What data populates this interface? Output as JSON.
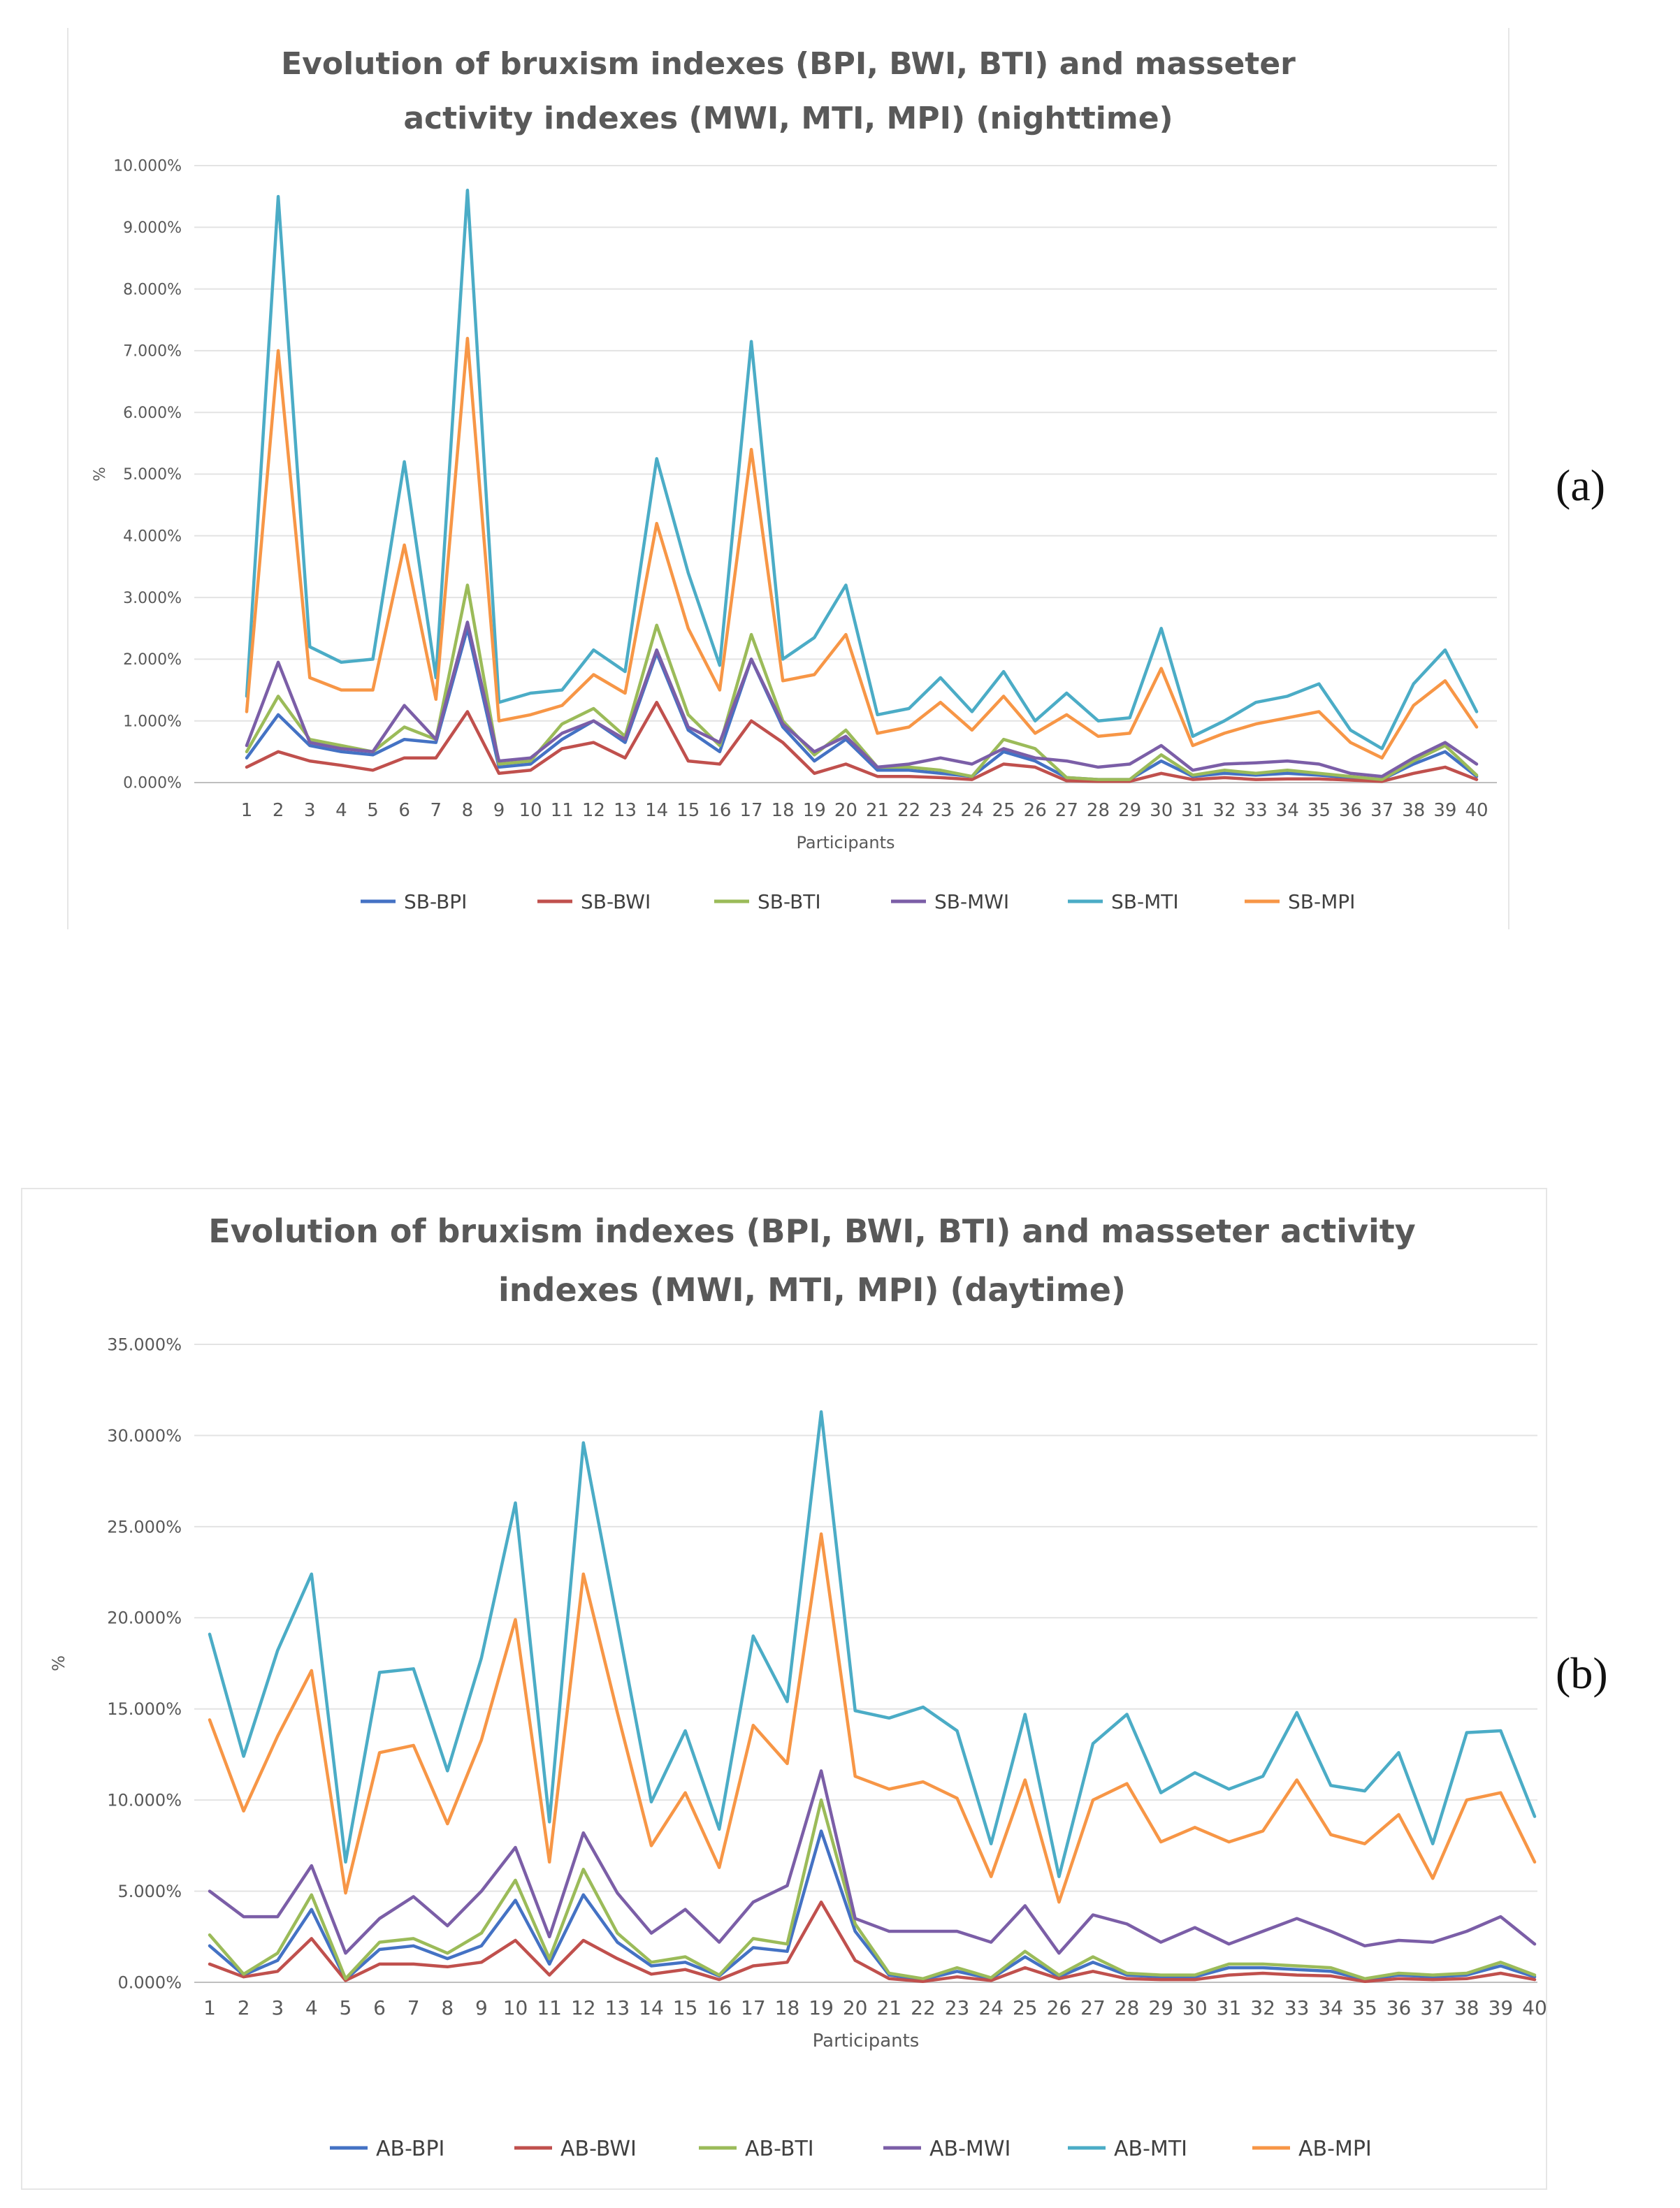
{
  "panel_labels": {
    "a": "(a)",
    "b": "(b)"
  },
  "chart_data": [
    {
      "type": "line",
      "title_lines": [
        "Evolution of bruxism indexes (BPI, BWI, BTI) and masseter",
        "activity indexes (MWI, MTI, MPI) (nighttime)"
      ],
      "xlabel": "Participants",
      "ylabel": "%",
      "ylim": [
        0,
        10
      ],
      "y_ticks": [
        0,
        1,
        2,
        3,
        4,
        5,
        6,
        7,
        8,
        9,
        10
      ],
      "y_tick_labels": [
        "0.000%",
        "1.000%",
        "2.000%",
        "3.000%",
        "4.000%",
        "5.000%",
        "6.000%",
        "7.000%",
        "8.000%",
        "9.000%",
        "10.000%"
      ],
      "categories": [
        "1",
        "2",
        "3",
        "4",
        "5",
        "6",
        "7",
        "8",
        "9",
        "10",
        "11",
        "12",
        "13",
        "14",
        "15",
        "16",
        "17",
        "18",
        "19",
        "20",
        "21",
        "22",
        "23",
        "24",
        "25",
        "26",
        "27",
        "28",
        "29",
        "30",
        "31",
        "32",
        "33",
        "34",
        "35",
        "36",
        "37",
        "38",
        "39",
        "40"
      ],
      "grid": true,
      "legend_position": "bottom",
      "series": [
        {
          "name": "SB-BPI",
          "color": "#4472c4",
          "values": [
            0.4,
            1.1,
            0.6,
            0.5,
            0.45,
            0.7,
            0.65,
            2.5,
            0.25,
            0.3,
            0.7,
            1.0,
            0.65,
            2.1,
            0.85,
            0.5,
            2.0,
            0.9,
            0.35,
            0.7,
            0.2,
            0.2,
            0.15,
            0.1,
            0.5,
            0.35,
            0.08,
            0.05,
            0.05,
            0.35,
            0.1,
            0.15,
            0.12,
            0.15,
            0.12,
            0.08,
            0.05,
            0.3,
            0.5,
            0.1
          ]
        },
        {
          "name": "SB-BWI",
          "color": "#c0504d",
          "values": [
            0.25,
            0.5,
            0.35,
            0.28,
            0.2,
            0.4,
            0.4,
            1.15,
            0.15,
            0.2,
            0.55,
            0.65,
            0.4,
            1.3,
            0.35,
            0.3,
            1.0,
            0.65,
            0.15,
            0.3,
            0.1,
            0.1,
            0.08,
            0.05,
            0.3,
            0.25,
            0.03,
            0.02,
            0.02,
            0.15,
            0.05,
            0.08,
            0.05,
            0.06,
            0.06,
            0.04,
            0.02,
            0.15,
            0.25,
            0.05
          ]
        },
        {
          "name": "SB-BTI",
          "color": "#9bbb59",
          "values": [
            0.5,
            1.4,
            0.7,
            0.6,
            0.5,
            0.9,
            0.7,
            3.2,
            0.3,
            0.35,
            0.95,
            1.2,
            0.75,
            2.55,
            1.1,
            0.6,
            2.4,
            1.0,
            0.45,
            0.85,
            0.25,
            0.25,
            0.2,
            0.1,
            0.7,
            0.55,
            0.08,
            0.05,
            0.05,
            0.45,
            0.12,
            0.2,
            0.15,
            0.2,
            0.15,
            0.1,
            0.05,
            0.35,
            0.6,
            0.12
          ]
        },
        {
          "name": "SB-MWI",
          "color": "#7b5ea7",
          "values": [
            0.6,
            1.95,
            0.65,
            0.55,
            0.5,
            1.25,
            0.7,
            2.6,
            0.35,
            0.4,
            0.8,
            1.0,
            0.7,
            2.15,
            0.9,
            0.65,
            2.0,
            0.95,
            0.5,
            0.75,
            0.25,
            0.3,
            0.4,
            0.3,
            0.55,
            0.4,
            0.35,
            0.25,
            0.3,
            0.6,
            0.2,
            0.3,
            0.32,
            0.35,
            0.3,
            0.15,
            0.1,
            0.4,
            0.65,
            0.3
          ]
        },
        {
          "name": "SB-MTI",
          "color": "#4bacc6",
          "values": [
            1.4,
            9.5,
            2.2,
            1.95,
            2.0,
            5.2,
            1.7,
            9.6,
            1.3,
            1.45,
            1.5,
            2.15,
            1.8,
            5.25,
            3.4,
            1.9,
            7.15,
            2.0,
            2.35,
            3.2,
            1.1,
            1.2,
            1.7,
            1.15,
            1.8,
            1.0,
            1.45,
            1.0,
            1.05,
            2.5,
            0.75,
            1.0,
            1.3,
            1.4,
            1.6,
            0.85,
            0.55,
            1.6,
            2.15,
            1.15
          ]
        },
        {
          "name": "SB-MPI",
          "color": "#f79646",
          "values": [
            1.15,
            7.0,
            1.7,
            1.5,
            1.5,
            3.85,
            1.35,
            7.2,
            1.0,
            1.1,
            1.25,
            1.75,
            1.45,
            4.2,
            2.5,
            1.5,
            5.4,
            1.65,
            1.75,
            2.4,
            0.8,
            0.9,
            1.3,
            0.85,
            1.4,
            0.8,
            1.1,
            0.75,
            0.8,
            1.85,
            0.6,
            0.8,
            0.95,
            1.05,
            1.15,
            0.65,
            0.4,
            1.25,
            1.65,
            0.9
          ]
        }
      ]
    },
    {
      "type": "line",
      "title_lines": [
        "Evolution of bruxism indexes (BPI, BWI, BTI) and masseter activity",
        "indexes (MWI, MTI, MPI) (daytime)"
      ],
      "xlabel": "Participants",
      "ylabel": "%",
      "ylim": [
        0,
        35
      ],
      "y_ticks": [
        0,
        5,
        10,
        15,
        20,
        25,
        30,
        35
      ],
      "y_tick_labels": [
        "0.000%",
        "5.000%",
        "10.000%",
        "15.000%",
        "20.000%",
        "25.000%",
        "30.000%",
        "35.000%"
      ],
      "categories": [
        "1",
        "2",
        "3",
        "4",
        "5",
        "6",
        "7",
        "8",
        "9",
        "10",
        "11",
        "12",
        "13",
        "14",
        "15",
        "16",
        "17",
        "18",
        "19",
        "20",
        "21",
        "22",
        "23",
        "24",
        "25",
        "26",
        "27",
        "28",
        "29",
        "30",
        "31",
        "32",
        "33",
        "34",
        "35",
        "36",
        "37",
        "38",
        "39",
        "40"
      ],
      "grid": true,
      "legend_position": "bottom",
      "series": [
        {
          "name": "AB-BPI",
          "color": "#4472c4",
          "values": [
            2.0,
            0.4,
            1.2,
            4.0,
            0.15,
            1.8,
            2.0,
            1.3,
            2.0,
            4.5,
            1.0,
            4.8,
            2.2,
            0.9,
            1.1,
            0.35,
            1.9,
            1.7,
            8.3,
            2.8,
            0.4,
            0.15,
            0.6,
            0.2,
            1.4,
            0.3,
            1.1,
            0.4,
            0.3,
            0.3,
            0.8,
            0.8,
            0.7,
            0.6,
            0.15,
            0.4,
            0.3,
            0.4,
            0.9,
            0.3
          ]
        },
        {
          "name": "AB-BWI",
          "color": "#c0504d",
          "values": [
            1.0,
            0.3,
            0.6,
            2.4,
            0.1,
            1.0,
            1.0,
            0.85,
            1.1,
            2.3,
            0.4,
            2.3,
            1.3,
            0.45,
            0.7,
            0.15,
            0.9,
            1.1,
            4.4,
            1.2,
            0.2,
            0.05,
            0.3,
            0.1,
            0.8,
            0.2,
            0.6,
            0.2,
            0.15,
            0.15,
            0.4,
            0.5,
            0.4,
            0.35,
            0.05,
            0.2,
            0.15,
            0.2,
            0.5,
            0.15
          ]
        },
        {
          "name": "AB-BTI",
          "color": "#9bbb59",
          "values": [
            2.6,
            0.45,
            1.6,
            4.8,
            0.2,
            2.2,
            2.4,
            1.6,
            2.7,
            5.6,
            1.3,
            6.2,
            2.7,
            1.1,
            1.4,
            0.4,
            2.4,
            2.1,
            10.0,
            3.2,
            0.5,
            0.2,
            0.8,
            0.25,
            1.7,
            0.4,
            1.4,
            0.5,
            0.4,
            0.4,
            1.0,
            1.0,
            0.9,
            0.8,
            0.2,
            0.5,
            0.4,
            0.5,
            1.1,
            0.4
          ]
        },
        {
          "name": "AB-MWI",
          "color": "#7b5ea7",
          "values": [
            5.0,
            3.6,
            3.6,
            6.4,
            1.6,
            3.5,
            4.7,
            3.1,
            5.0,
            7.4,
            2.5,
            8.2,
            4.9,
            2.7,
            4.0,
            2.2,
            4.4,
            5.3,
            11.6,
            3.5,
            2.8,
            2.8,
            2.8,
            2.2,
            4.2,
            1.6,
            3.7,
            3.2,
            2.2,
            3.0,
            2.1,
            2.8,
            3.5,
            2.8,
            2.0,
            2.3,
            2.2,
            2.8,
            3.6,
            2.1
          ]
        },
        {
          "name": "AB-MTI",
          "color": "#4bacc6",
          "values": [
            19.1,
            12.4,
            18.2,
            22.4,
            6.6,
            17.0,
            17.2,
            11.6,
            17.8,
            26.3,
            8.8,
            29.6,
            19.8,
            9.9,
            13.8,
            8.4,
            19.0,
            15.4,
            31.3,
            14.9,
            14.5,
            15.1,
            13.8,
            7.6,
            14.7,
            5.8,
            13.1,
            14.7,
            10.4,
            11.5,
            10.6,
            11.3,
            14.8,
            10.8,
            10.5,
            12.6,
            7.6,
            13.7,
            13.8,
            9.1
          ]
        },
        {
          "name": "AB-MPI",
          "color": "#f79646",
          "values": [
            14.4,
            9.4,
            13.5,
            17.1,
            4.9,
            12.6,
            13.0,
            8.7,
            13.3,
            19.9,
            6.6,
            22.4,
            14.8,
            7.5,
            10.4,
            6.3,
            14.1,
            12.0,
            24.6,
            11.3,
            10.6,
            11.0,
            10.1,
            5.8,
            11.1,
            4.4,
            10.0,
            10.9,
            7.7,
            8.5,
            7.7,
            8.3,
            11.1,
            8.1,
            7.6,
            9.2,
            5.7,
            10.0,
            10.4,
            6.6
          ]
        }
      ]
    }
  ]
}
